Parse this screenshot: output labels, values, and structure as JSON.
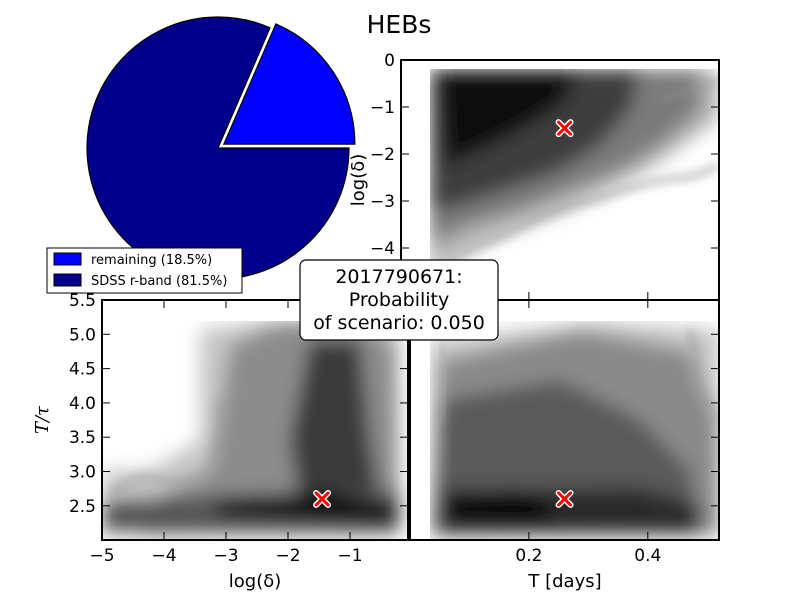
{
  "chart_data": [
    {
      "type": "pie",
      "title": "HEBs",
      "slices": [
        {
          "label": "remaining (18.5%)",
          "value": 18.5,
          "color": "#0000ff"
        },
        {
          "label": "SDSS r-band (81.5%)",
          "value": 81.5,
          "color": "#00008b"
        }
      ],
      "legend_position": "lower-left"
    },
    {
      "type": "heatmap",
      "panel": "top-right",
      "ylabel": "log(δ)",
      "ylim": [
        -4.5,
        0
      ],
      "xlim": [
        0,
        0.5
      ],
      "yticks": [
        "0",
        "−1",
        "−2",
        "−3",
        "−4"
      ],
      "yticks_values": [
        0,
        -1,
        -2,
        -3,
        -4
      ],
      "marker": {
        "x": 0.26,
        "y": -1.45
      }
    },
    {
      "type": "heatmap",
      "panel": "bottom-left",
      "xlabel": "log(δ)",
      "ylabel": "T/τ",
      "xlim": [
        -5,
        -0.05
      ],
      "ylim": [
        2.0,
        5.5
      ],
      "xticks": [
        "−5",
        "−4",
        "−3",
        "−2",
        "−1"
      ],
      "xticks_values": [
        -5,
        -4,
        -3,
        -2,
        -1
      ],
      "yticks": [
        "5.5",
        "5.0",
        "4.5",
        "4.0",
        "3.5",
        "3.0",
        "2.5"
      ],
      "yticks_values": [
        5.5,
        5.0,
        4.5,
        4.0,
        3.5,
        3.0,
        2.5
      ],
      "marker": {
        "x": -1.45,
        "y": 2.6
      }
    },
    {
      "type": "heatmap",
      "panel": "bottom-right",
      "xlabel": "T [days]",
      "xlim": [
        0,
        0.5
      ],
      "ylim": [
        2.0,
        5.5
      ],
      "xticks": [
        "0.2",
        "0.4"
      ],
      "xticks_values": [
        0.2,
        0.4
      ],
      "marker": {
        "x": 0.26,
        "y": 2.6
      }
    }
  ],
  "annotation": {
    "line1": "2017790671:",
    "line2": "Probability",
    "line3": "of scenario: 0.050"
  },
  "colors": {
    "marker": "#ff0000",
    "heat_dark": "#000000",
    "heat_light": "#ffffff"
  }
}
